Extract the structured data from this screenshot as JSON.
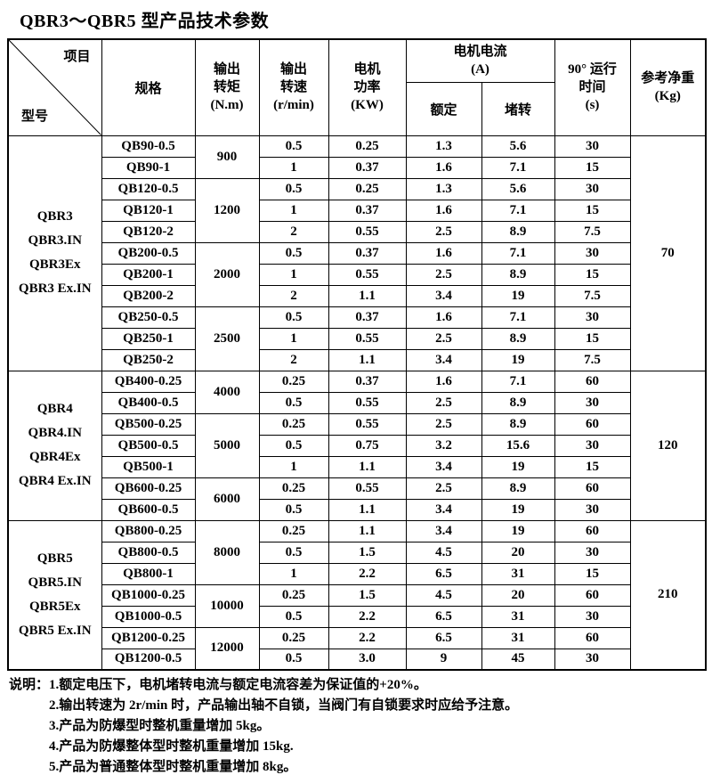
{
  "title": "QBR3～QBR5 型产品技术参数",
  "table": {
    "corner": {
      "top": "项目",
      "bottom": "型号"
    },
    "header": {
      "spec": "规格",
      "torque": "输出\n转矩\n(N.m)",
      "speed": "输出\n转速\n(r/min)",
      "power": "电机\n功率\n(KW)",
      "current": "电机电流\n(A)",
      "rated": "额定",
      "stall": "堵转",
      "time": "90° 运行\n时间\n(s)",
      "weight": "参考净重\n(Kg)"
    },
    "groups": [
      {
        "models": [
          "QBR3",
          "QBR3.IN",
          "QBR3Ex",
          "QBR3 Ex.IN"
        ],
        "weight": "70",
        "blocks": [
          {
            "torque": "900",
            "rows": [
              {
                "spec": "QB90-0.5",
                "speed": "0.5",
                "power": "0.25",
                "rated": "1.3",
                "stall": "5.6",
                "time": "30"
              },
              {
                "spec": "QB90-1",
                "speed": "1",
                "power": "0.37",
                "rated": "1.6",
                "stall": "7.1",
                "time": "15"
              }
            ]
          },
          {
            "torque": "1200",
            "rows": [
              {
                "spec": "QB120-0.5",
                "speed": "0.5",
                "power": "0.25",
                "rated": "1.3",
                "stall": "5.6",
                "time": "30"
              },
              {
                "spec": "QB120-1",
                "speed": "1",
                "power": "0.37",
                "rated": "1.6",
                "stall": "7.1",
                "time": "15"
              },
              {
                "spec": "QB120-2",
                "speed": "2",
                "power": "0.55",
                "rated": "2.5",
                "stall": "8.9",
                "time": "7.5"
              }
            ]
          },
          {
            "torque": "2000",
            "rows": [
              {
                "spec": "QB200-0.5",
                "speed": "0.5",
                "power": "0.37",
                "rated": "1.6",
                "stall": "7.1",
                "time": "30"
              },
              {
                "spec": "QB200-1",
                "speed": "1",
                "power": "0.55",
                "rated": "2.5",
                "stall": "8.9",
                "time": "15"
              },
              {
                "spec": "QB200-2",
                "speed": "2",
                "power": "1.1",
                "rated": "3.4",
                "stall": "19",
                "time": "7.5"
              }
            ]
          },
          {
            "torque": "2500",
            "rows": [
              {
                "spec": "QB250-0.5",
                "speed": "0.5",
                "power": "0.37",
                "rated": "1.6",
                "stall": "7.1",
                "time": "30"
              },
              {
                "spec": "QB250-1",
                "speed": "1",
                "power": "0.55",
                "rated": "2.5",
                "stall": "8.9",
                "time": "15"
              },
              {
                "spec": "QB250-2",
                "speed": "2",
                "power": "1.1",
                "rated": "3.4",
                "stall": "19",
                "time": "7.5"
              }
            ]
          }
        ]
      },
      {
        "models": [
          "QBR4",
          "QBR4.IN",
          "QBR4Ex",
          "QBR4 Ex.IN"
        ],
        "weight": "120",
        "blocks": [
          {
            "torque": "4000",
            "rows": [
              {
                "spec": "QB400-0.25",
                "speed": "0.25",
                "power": "0.37",
                "rated": "1.6",
                "stall": "7.1",
                "time": "60"
              },
              {
                "spec": "QB400-0.5",
                "speed": "0.5",
                "power": "0.55",
                "rated": "2.5",
                "stall": "8.9",
                "time": "30"
              }
            ]
          },
          {
            "torque": "5000",
            "rows": [
              {
                "spec": "QB500-0.25",
                "speed": "0.25",
                "power": "0.55",
                "rated": "2.5",
                "stall": "8.9",
                "time": "60"
              },
              {
                "spec": "QB500-0.5",
                "speed": "0.5",
                "power": "0.75",
                "rated": "3.2",
                "stall": "15.6",
                "time": "30"
              },
              {
                "spec": "QB500-1",
                "speed": "1",
                "power": "1.1",
                "rated": "3.4",
                "stall": "19",
                "time": "15"
              }
            ]
          },
          {
            "torque": "6000",
            "rows": [
              {
                "spec": "QB600-0.25",
                "speed": "0.25",
                "power": "0.55",
                "rated": "2.5",
                "stall": "8.9",
                "time": "60"
              },
              {
                "spec": "QB600-0.5",
                "speed": "0.5",
                "power": "1.1",
                "rated": "3.4",
                "stall": "19",
                "time": "30"
              }
            ]
          }
        ]
      },
      {
        "models": [
          "QBR5",
          "QBR5.IN",
          "QBR5Ex",
          "QBR5 Ex.IN"
        ],
        "weight": "210",
        "blocks": [
          {
            "torque": "8000",
            "rows": [
              {
                "spec": "QB800-0.25",
                "speed": "0.25",
                "power": "1.1",
                "rated": "3.4",
                "stall": "19",
                "time": "60"
              },
              {
                "spec": "QB800-0.5",
                "speed": "0.5",
                "power": "1.5",
                "rated": "4.5",
                "stall": "20",
                "time": "30"
              },
              {
                "spec": "QB800-1",
                "speed": "1",
                "power": "2.2",
                "rated": "6.5",
                "stall": "31",
                "time": "15"
              }
            ]
          },
          {
            "torque": "10000",
            "rows": [
              {
                "spec": "QB1000-0.25",
                "speed": "0.25",
                "power": "1.5",
                "rated": "4.5",
                "stall": "20",
                "time": "60"
              },
              {
                "spec": "QB1000-0.5",
                "speed": "0.5",
                "power": "2.2",
                "rated": "6.5",
                "stall": "31",
                "time": "30"
              }
            ]
          },
          {
            "torque": "12000",
            "rows": [
              {
                "spec": "QB1200-0.25",
                "speed": "0.25",
                "power": "2.2",
                "rated": "6.5",
                "stall": "31",
                "time": "60"
              },
              {
                "spec": "QB1200-0.5",
                "speed": "0.5",
                "power": "3.0",
                "rated": "9",
                "stall": "45",
                "time": "30"
              }
            ]
          }
        ]
      }
    ]
  },
  "notes": {
    "label": "说明：",
    "items": [
      "1.额定电压下，电机堵转电流与额定电流容差为保证值的+20%。",
      "2.输出转速为 2r/min 时，产品输出轴不自锁，当阀门有自锁要求时应给予注意。",
      "3.产品为防爆型时整机重量增加 5kg。",
      "4.产品为防爆整体型时整机重量增加 15kg.",
      "5.产品为普通整体型时整机重量增加 8kg。"
    ]
  }
}
